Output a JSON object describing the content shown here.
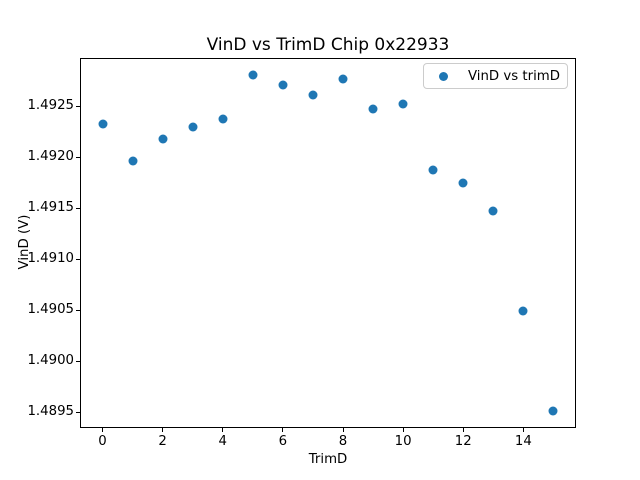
{
  "colors": {
    "background": "#ffffff",
    "spine": "#000000",
    "marker": "#1f77b4",
    "legend_border": "#cccccc"
  },
  "chart_data": {
    "type": "scatter",
    "title": "VinD vs TrimD Chip 0x22933",
    "xlabel": "TrimD",
    "ylabel": "VinD (V)",
    "xlim": [
      -0.75,
      15.75
    ],
    "ylim": [
      1.489345,
      1.492975
    ],
    "xticks": [
      0,
      2,
      4,
      6,
      8,
      10,
      12,
      14
    ],
    "xtick_labels": [
      "0",
      "2",
      "4",
      "6",
      "8",
      "10",
      "12",
      "14"
    ],
    "yticks": [
      1.4895,
      1.49,
      1.4905,
      1.491,
      1.4915,
      1.492,
      1.4925
    ],
    "ytick_labels": [
      "1.4895",
      "1.4900",
      "1.4905",
      "1.4910",
      "1.4915",
      "1.4920",
      "1.4925"
    ],
    "grid": false,
    "legend": {
      "position": "upper right",
      "entries": [
        {
          "label": "VinD vs trimD",
          "marker": "circle",
          "color": "#1f77b4"
        }
      ]
    },
    "series": [
      {
        "name": "VinD vs trimD",
        "color": "#1f77b4",
        "x": [
          0,
          1,
          2,
          3,
          4,
          5,
          6,
          7,
          8,
          9,
          10,
          11,
          12,
          13,
          14,
          15
        ],
        "y": [
          1.49233,
          1.49196,
          1.49218,
          1.4923,
          1.49238,
          1.49281,
          1.49271,
          1.49261,
          1.49277,
          1.49247,
          1.49252,
          1.49188,
          1.49175,
          1.49147,
          1.49049,
          1.48951
        ]
      }
    ]
  }
}
